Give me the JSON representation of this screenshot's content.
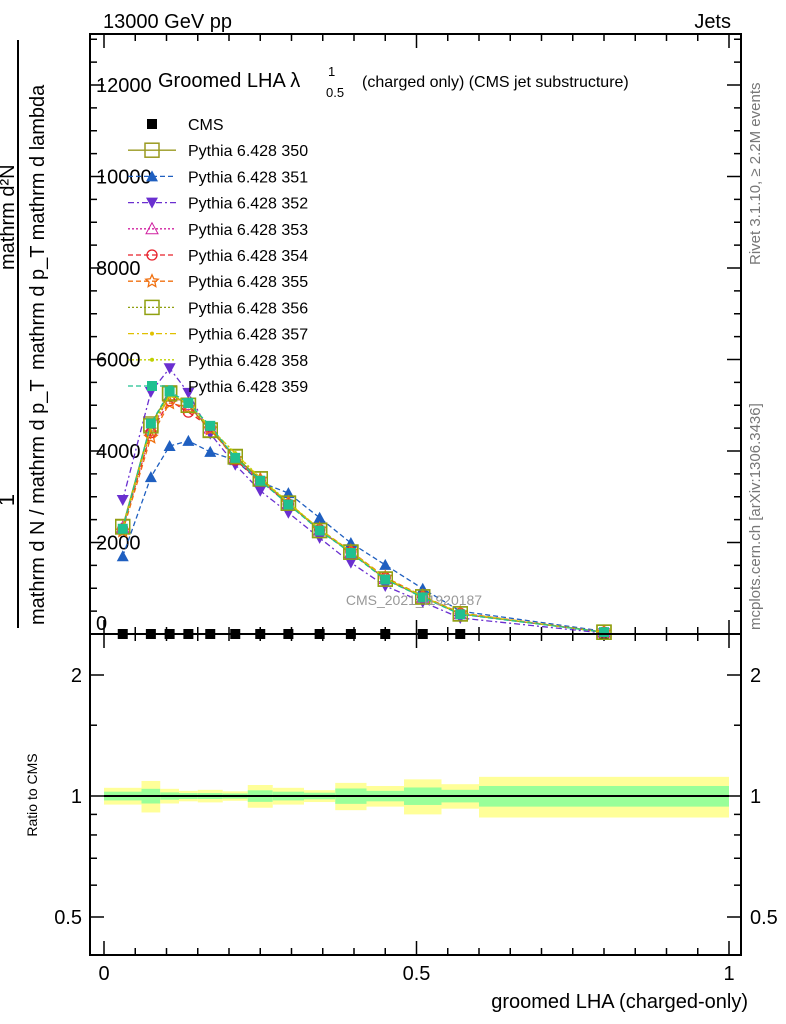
{
  "chart_data": [
    {
      "type": "line",
      "header_left": "13000 GeV pp",
      "header_right": "Jets",
      "title": "Groomed LHA λ",
      "title_sup": "1",
      "title_sub": "0.5",
      "title_suffix": "(charged only) (CMS jet substructure)",
      "ylabel": {
        "num1": "1",
        "den1": "mathrm d N / mathrm d p_T",
        "num2": "mathrm d²N",
        "den2": "mathrm d p_T mathrm d lambda"
      },
      "side_label_top": "Rivet 3.1.10, ≥ 2.2M events",
      "side_label_bottom": "mcplots.cern.ch [arXiv:1306.3436]",
      "watermark": "CMS_2021_I1920187",
      "ylim": [
        0,
        13000
      ],
      "yticks": [
        0,
        2000,
        4000,
        6000,
        8000,
        10000,
        12000
      ],
      "ytick_labels": [
        "0",
        "2000",
        "4000",
        "6000",
        "8000",
        "10000",
        "12000"
      ],
      "x": [
        0.03,
        0.075,
        0.105,
        0.135,
        0.17,
        0.21,
        0.25,
        0.295,
        0.345,
        0.395,
        0.45,
        0.51,
        0.57,
        0.8
      ],
      "bin_edges": [
        0,
        0.06,
        0.09,
        0.12,
        0.15,
        0.19,
        0.23,
        0.27,
        0.32,
        0.37,
        0.42,
        0.48,
        0.54,
        0.6,
        1.0
      ],
      "legend_position": "top-left",
      "series": [
        {
          "name": "CMS",
          "color": "#000000",
          "values": [
            0,
            0,
            0,
            0,
            0,
            0,
            0,
            0,
            0,
            0,
            0,
            0,
            0,
            0
          ],
          "marker": "square-filled",
          "dash": "none"
        },
        {
          "name": "Pythia 6.428 350",
          "color": "#9a9a20",
          "marker": "square-open",
          "dash": "solid",
          "values": [
            2350,
            4590,
            5270,
            5000,
            4460,
            3870,
            3390,
            2860,
            2270,
            1790,
            1200,
            810,
            440,
            40
          ]
        },
        {
          "name": "Pythia 6.428 351",
          "color": "#1f5fc0",
          "marker": "triangle-filled",
          "dash": "5,3",
          "values": [
            1700,
            3430,
            4110,
            4220,
            3980,
            3800,
            3320,
            3080,
            2540,
            1990,
            1510,
            990,
            500,
            60
          ]
        },
        {
          "name": "Pythia 6.428 352",
          "color": "#6a2fd0",
          "marker": "triangle-down-filled",
          "dash": "6,3,2,3",
          "values": [
            2930,
            5290,
            5810,
            5270,
            4380,
            3700,
            3130,
            2650,
            2100,
            1560,
            1050,
            700,
            350,
            20
          ]
        },
        {
          "name": "Pythia 6.428 353",
          "color": "#d020a0",
          "marker": "triangle-open",
          "dash": "2,2",
          "values": [
            2330,
            4450,
            5200,
            5020,
            4500,
            3850,
            3360,
            2850,
            2270,
            1780,
            1210,
            800,
            440,
            40
          ]
        },
        {
          "name": "Pythia 6.428 354",
          "color": "#e8202a",
          "marker": "circle-open",
          "dash": "5,3",
          "values": [
            2300,
            4400,
            5100,
            4850,
            4520,
            3800,
            3350,
            2840,
            2280,
            1800,
            1230,
            820,
            450,
            40
          ]
        },
        {
          "name": "Pythia 6.428 355",
          "color": "#f07010",
          "marker": "star-open",
          "dash": "5,3",
          "values": [
            2250,
            4300,
            5050,
            4950,
            4480,
            3830,
            3380,
            2870,
            2290,
            1810,
            1240,
            830,
            460,
            40
          ]
        },
        {
          "name": "Pythia 6.428 356",
          "color": "#90a010",
          "marker": "square-open",
          "dash": "2,2",
          "values": [
            2340,
            4550,
            5250,
            5000,
            4450,
            3880,
            3390,
            2860,
            2260,
            1790,
            1200,
            810,
            440,
            40
          ]
        },
        {
          "name": "Pythia 6.428 357",
          "color": "#e0c000",
          "marker": "dot",
          "dash": "6,3,2,3",
          "values": [
            2320,
            4500,
            5200,
            5050,
            4500,
            3950,
            3400,
            2870,
            2280,
            1800,
            1220,
            820,
            450,
            40
          ]
        },
        {
          "name": "Pythia 6.428 358",
          "color": "#c0d000",
          "marker": "dot",
          "dash": "2,2",
          "values": [
            2330,
            4520,
            5220,
            5080,
            4500,
            3950,
            3420,
            2880,
            2290,
            1800,
            1220,
            820,
            450,
            40
          ]
        },
        {
          "name": "Pythia 6.428 359",
          "color": "#20c090",
          "marker": "square-filled",
          "dash": "5,3",
          "values": [
            2300,
            4600,
            5300,
            5050,
            4550,
            3850,
            3350,
            2830,
            2260,
            1770,
            1190,
            800,
            430,
            40
          ]
        }
      ]
    },
    {
      "type": "area",
      "ylabel": "Ratio to CMS",
      "xlabel": "groomed LHA (charged-only)",
      "yscale": "log",
      "ylim": [
        0.4,
        2.3
      ],
      "yticks": [
        0.5,
        1,
        2
      ],
      "ytick_labels": [
        "0.5",
        "1",
        "2"
      ],
      "xlim": [
        0,
        1
      ],
      "xticks": [
        0,
        0.5,
        1
      ],
      "xtick_labels": [
        "0",
        "0.5",
        "1"
      ],
      "bin_edges": [
        0,
        0.06,
        0.09,
        0.12,
        0.15,
        0.19,
        0.23,
        0.27,
        0.32,
        0.37,
        0.42,
        0.48,
        0.54,
        0.6,
        1.0
      ],
      "total_uncertainty": [
        0.048,
        0.09,
        0.042,
        0.03,
        0.036,
        0.027,
        0.065,
        0.048,
        0.034,
        0.078,
        0.059,
        0.1,
        0.07,
        0.116
      ],
      "stat_uncertainty": [
        0.025,
        0.042,
        0.021,
        0.017,
        0.017,
        0.015,
        0.033,
        0.025,
        0.019,
        0.044,
        0.03,
        0.05,
        0.036,
        0.059
      ],
      "total_color": "#ffff99",
      "stat_color": "#99ff99"
    }
  ]
}
